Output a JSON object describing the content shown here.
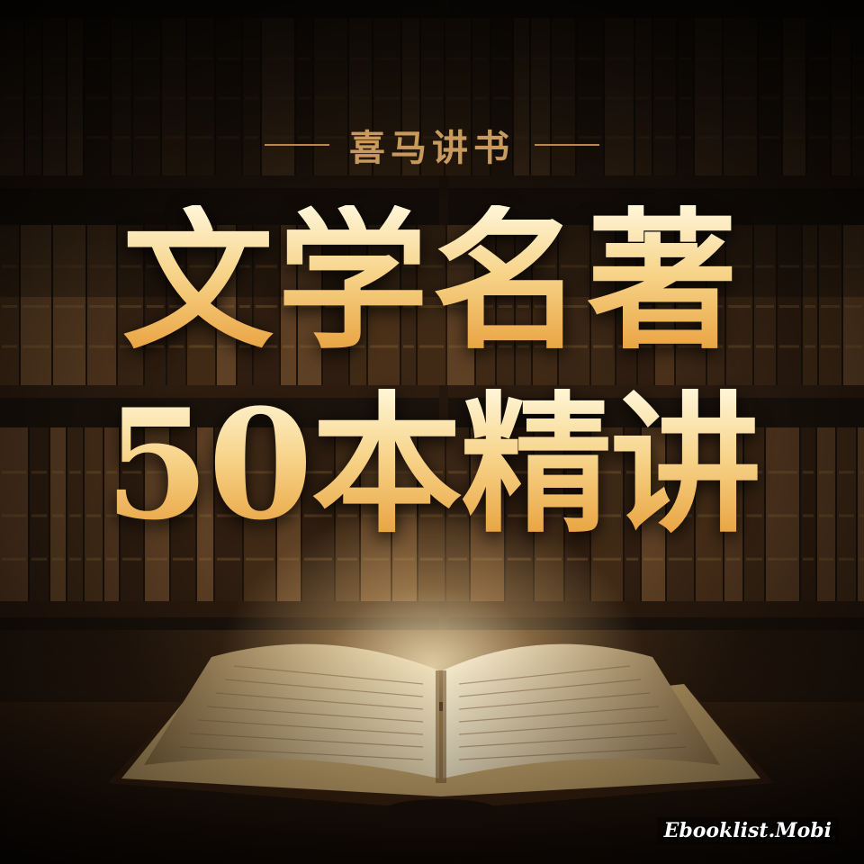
{
  "series": {
    "label": "喜马讲书"
  },
  "headline": {
    "line1": "文学名著",
    "line2": "50本精讲"
  },
  "watermark": {
    "text": "Ebooklist.Mobi"
  },
  "colors": {
    "gold_light": "#fff6d8",
    "gold_mid": "#f7d48a",
    "gold_dark": "#e8a03c",
    "accent": "#c99a5e"
  },
  "icons": {
    "background": "bookshelf-illustration",
    "foreground": "open-book-illustration"
  }
}
